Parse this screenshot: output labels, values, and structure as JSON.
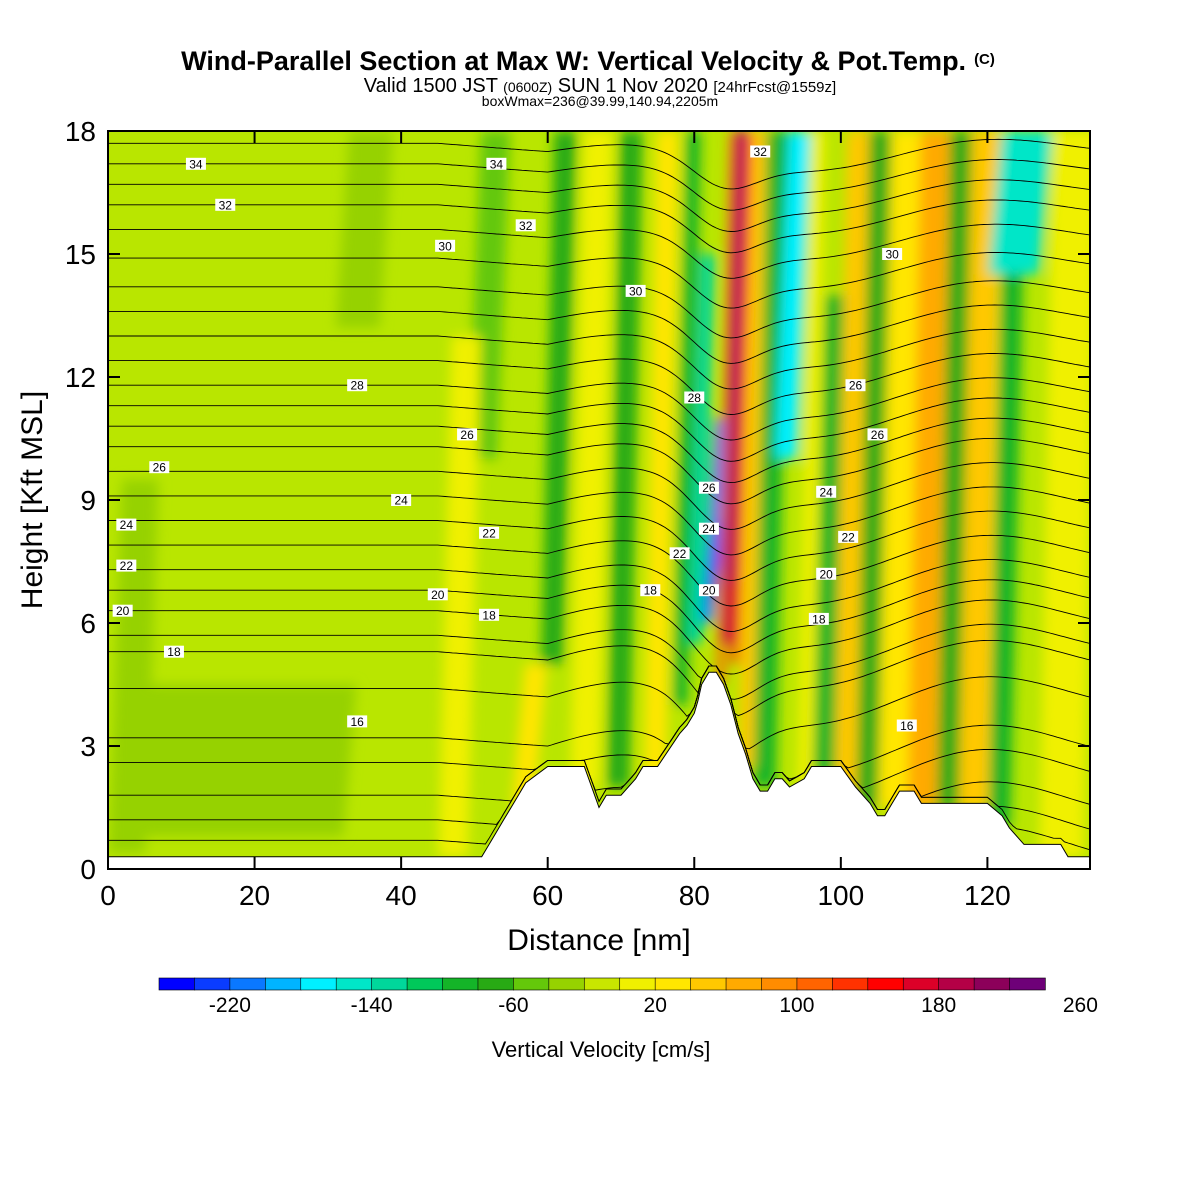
{
  "chart_data": {
    "type": "heatmap",
    "title": {
      "main": "Wind-Parallel Section at Max W: Vertical Velocity & Pot.Temp.",
      "main_suffix": "(C)",
      "valid_a": "Valid 1500 JST",
      "valid_b": "(0600Z)",
      "valid_c": "SUN 1 Nov 2020",
      "valid_d": "[24hrFcst@1559z]",
      "subtitle": "boxWmax=236@39.99,140.94,2205m"
    },
    "xlabel": "Distance [nm]",
    "ylabel": "Height [Kft MSL]",
    "xlim": [
      0,
      134
    ],
    "ylim": [
      0,
      18
    ],
    "x_ticks": [
      0,
      20,
      40,
      60,
      80,
      100,
      120
    ],
    "y_ticks": [
      0,
      3,
      6,
      9,
      12,
      15,
      18
    ],
    "colorbar": {
      "label": "Vertical Velocity [cm/s]",
      "min": -260,
      "step": 20,
      "colors": [
        "#0000ff",
        "#0a3cff",
        "#0a78ff",
        "#00b4ff",
        "#00f0ff",
        "#00e6c8",
        "#00d79b",
        "#00c85a",
        "#14b428",
        "#28aa14",
        "#64c80a",
        "#96d200",
        "#c8e600",
        "#f0f000",
        "#ffe600",
        "#ffc800",
        "#ffaa00",
        "#ff8c00",
        "#ff6400",
        "#ff3200",
        "#ff0000",
        "#dc0028",
        "#b40046",
        "#8c005a",
        "#6e0078"
      ],
      "labels": [
        {
          "value": -220,
          "text": "-220"
        },
        {
          "value": -140,
          "text": "-140"
        },
        {
          "value": -60,
          "text": "-60"
        },
        {
          "value": 20,
          "text": "20"
        },
        {
          "value": 100,
          "text": "100"
        },
        {
          "value": 180,
          "text": "180"
        },
        {
          "value": 260,
          "text": "260"
        }
      ]
    },
    "background_color": "#b9e600",
    "velocity_bands": [
      {
        "x": 1,
        "w": 5,
        "y0": 0.4,
        "y1": 9.5,
        "color": "#96d200"
      },
      {
        "x": 5,
        "w": 28,
        "y0": 0.8,
        "y1": 4.5,
        "color": "#96d200"
      },
      {
        "x": 32,
        "w": 6,
        "y0": 13.2,
        "y1": 18,
        "color": "#96d200"
      },
      {
        "x": 50,
        "w": 4,
        "y0": 10,
        "y1": 18,
        "color": "#64c80a"
      },
      {
        "x": 46,
        "w": 4,
        "y0": 0.3,
        "y1": 13,
        "color": "#f0f000"
      },
      {
        "x": 56,
        "w": 3,
        "y0": 1.5,
        "y1": 5,
        "color": "#ffe600"
      },
      {
        "x": 60,
        "w": 3,
        "y0": 5,
        "y1": 18,
        "color": "#28aa14"
      },
      {
        "x": 64,
        "w": 4,
        "y0": 2,
        "y1": 18,
        "color": "#f0f000"
      },
      {
        "x": 69,
        "w": 3,
        "y0": 2,
        "y1": 18,
        "color": "#28aa14"
      },
      {
        "x": 74,
        "w": 3,
        "y0": 2,
        "y1": 18,
        "color": "#ffe600"
      },
      {
        "x": 78,
        "w": 2,
        "y0": 4,
        "y1": 18,
        "color": "#14b428"
      },
      {
        "x": 80,
        "w": 2,
        "y0": 5.5,
        "y1": 15,
        "color": "#00d79b"
      },
      {
        "x": 82,
        "w": 1.5,
        "y0": 6,
        "y1": 11,
        "color": "#0a78ff"
      },
      {
        "x": 82.5,
        "w": 1,
        "y0": 6.5,
        "y1": 8.5,
        "color": "#0a3cff"
      },
      {
        "x": 84,
        "w": 1,
        "y0": 4.5,
        "y1": 18,
        "color": "#ff6400"
      },
      {
        "x": 84.8,
        "w": 1.2,
        "y0": 5.5,
        "y1": 18,
        "color": "#b40046"
      },
      {
        "x": 85.4,
        "w": 0.7,
        "y0": 7,
        "y1": 18,
        "color": "#6e0078"
      },
      {
        "x": 86,
        "w": 1,
        "y0": 5,
        "y1": 18,
        "color": "#ff0000"
      },
      {
        "x": 87,
        "w": 2,
        "y0": 2.5,
        "y1": 18,
        "color": "#ffc800"
      },
      {
        "x": 89,
        "w": 3,
        "y0": 2,
        "y1": 18,
        "color": "#14b428"
      },
      {
        "x": 92,
        "w": 3,
        "y0": 10,
        "y1": 18,
        "color": "#00f0ff"
      },
      {
        "x": 95,
        "w": 2,
        "y0": 2,
        "y1": 18,
        "color": "#f0f000"
      },
      {
        "x": 97,
        "w": 3,
        "y0": 1.5,
        "y1": 14,
        "color": "#14b428"
      },
      {
        "x": 100,
        "w": 3,
        "y0": 1.5,
        "y1": 18,
        "color": "#ffc800"
      },
      {
        "x": 103,
        "w": 3,
        "y0": 1.5,
        "y1": 18,
        "color": "#28aa14"
      },
      {
        "x": 106,
        "w": 4,
        "y0": 1.5,
        "y1": 18,
        "color": "#ffe600"
      },
      {
        "x": 110,
        "w": 4,
        "y0": 1.5,
        "y1": 18,
        "color": "#ffaa00"
      },
      {
        "x": 114,
        "w": 3,
        "y0": 1.5,
        "y1": 18,
        "color": "#28aa14"
      },
      {
        "x": 117,
        "w": 4,
        "y0": 1.5,
        "y1": 18,
        "color": "#ffc800"
      },
      {
        "x": 121,
        "w": 3,
        "y0": 1,
        "y1": 15,
        "color": "#14b428"
      },
      {
        "x": 121,
        "w": 7,
        "y0": 14.5,
        "y1": 18,
        "color": "#00e6c8"
      },
      {
        "x": 128,
        "w": 6,
        "y0": 0.3,
        "y1": 18,
        "color": "#f0f000"
      }
    ],
    "terrain": [
      [
        0,
        0.3
      ],
      [
        51,
        0.3
      ],
      [
        52,
        0.6
      ],
      [
        53,
        0.9
      ],
      [
        54,
        1.2
      ],
      [
        55,
        1.5
      ],
      [
        56,
        1.8
      ],
      [
        57,
        2.1
      ],
      [
        60,
        2.5
      ],
      [
        65,
        2.5
      ],
      [
        67,
        1.5
      ],
      [
        68,
        1.8
      ],
      [
        70,
        1.8
      ],
      [
        72,
        2.2
      ],
      [
        73,
        2.5
      ],
      [
        75,
        2.5
      ],
      [
        78,
        3.3
      ],
      [
        79,
        3.5
      ],
      [
        80,
        3.8
      ],
      [
        80.5,
        4.1
      ],
      [
        81,
        4.5
      ],
      [
        82,
        4.8
      ],
      [
        83,
        4.8
      ],
      [
        84,
        4.5
      ],
      [
        85,
        4
      ],
      [
        86,
        3.3
      ],
      [
        87,
        2.8
      ],
      [
        88,
        2.2
      ],
      [
        89,
        1.9
      ],
      [
        90,
        1.9
      ],
      [
        91,
        2.2
      ],
      [
        92,
        2.2
      ],
      [
        93,
        2
      ],
      [
        95,
        2.2
      ],
      [
        96,
        2.5
      ],
      [
        100,
        2.5
      ],
      [
        102,
        2
      ],
      [
        104,
        1.6
      ],
      [
        105,
        1.3
      ],
      [
        106,
        1.3
      ],
      [
        107,
        1.6
      ],
      [
        108,
        1.9
      ],
      [
        110,
        1.9
      ],
      [
        111,
        1.6
      ],
      [
        120,
        1.6
      ],
      [
        122,
        1.3
      ],
      [
        123,
        1.0
      ],
      [
        125,
        0.6
      ],
      [
        130,
        0.6
      ],
      [
        131,
        0.3
      ],
      [
        134,
        0.3
      ]
    ],
    "theta_levels": [
      {
        "base": 0.7,
        "label": null
      },
      {
        "base": 1.2,
        "label": null
      },
      {
        "base": 1.8,
        "label": null
      },
      {
        "base": 2.6,
        "label": null
      },
      {
        "base": 3.2,
        "label": "16"
      },
      {
        "base": 4.4,
        "label": null
      },
      {
        "base": 5.3,
        "label": "18"
      },
      {
        "base": 5.7,
        "label": null
      },
      {
        "base": 6.3,
        "label": "20"
      },
      {
        "base": 6.8,
        "label": null
      },
      {
        "base": 7.3,
        "label": "22"
      },
      {
        "base": 7.9,
        "label": null
      },
      {
        "base": 8.5,
        "label": "24"
      },
      {
        "base": 9.1,
        "label": null
      },
      {
        "base": 9.7,
        "label": "26"
      },
      {
        "base": 10.3,
        "label": null
      },
      {
        "base": 10.8,
        "label": null
      },
      {
        "base": 11.3,
        "label": null
      },
      {
        "base": 11.8,
        "label": "28"
      },
      {
        "base": 12.4,
        "label": null
      },
      {
        "base": 13.0,
        "label": null
      },
      {
        "base": 13.6,
        "label": null
      },
      {
        "base": 14.2,
        "label": null
      },
      {
        "base": 14.9,
        "label": "30"
      },
      {
        "base": 15.6,
        "label": null
      },
      {
        "base": 16.2,
        "label": "32"
      },
      {
        "base": 16.7,
        "label": null
      },
      {
        "base": 17.2,
        "label": "34"
      },
      {
        "base": 17.7,
        "label": null
      }
    ],
    "contour_labels": [
      {
        "x": 12,
        "y": 17.2,
        "text": "34"
      },
      {
        "x": 16,
        "y": 16.2,
        "text": "32"
      },
      {
        "x": 46,
        "y": 15.2,
        "text": "30"
      },
      {
        "x": 34,
        "y": 11.8,
        "text": "28"
      },
      {
        "x": 7,
        "y": 9.8,
        "text": "26"
      },
      {
        "x": 2.5,
        "y": 8.4,
        "text": "24"
      },
      {
        "x": 2.5,
        "y": 7.4,
        "text": "22"
      },
      {
        "x": 2,
        "y": 6.3,
        "text": "20"
      },
      {
        "x": 9,
        "y": 5.3,
        "text": "18"
      },
      {
        "x": 34,
        "y": 3.6,
        "text": "16"
      },
      {
        "x": 53,
        "y": 17.2,
        "text": "34"
      },
      {
        "x": 57,
        "y": 15.7,
        "text": "32"
      },
      {
        "x": 72,
        "y": 14.1,
        "text": "30"
      },
      {
        "x": 80,
        "y": 11.5,
        "text": "28"
      },
      {
        "x": 49,
        "y": 10.6,
        "text": "26"
      },
      {
        "x": 40,
        "y": 9.0,
        "text": "24"
      },
      {
        "x": 52,
        "y": 8.2,
        "text": "22"
      },
      {
        "x": 45,
        "y": 6.7,
        "text": "20"
      },
      {
        "x": 52,
        "y": 6.2,
        "text": "18"
      },
      {
        "x": 74,
        "y": 6.8,
        "text": "18"
      },
      {
        "x": 78,
        "y": 7.7,
        "text": "22"
      },
      {
        "x": 82,
        "y": 9.3,
        "text": "26"
      },
      {
        "x": 82,
        "y": 8.3,
        "text": "24"
      },
      {
        "x": 82,
        "y": 6.8,
        "text": "20"
      },
      {
        "x": 89,
        "y": 17.5,
        "text": "32"
      },
      {
        "x": 107,
        "y": 15.0,
        "text": "30"
      },
      {
        "x": 102,
        "y": 11.8,
        "text": "26"
      },
      {
        "x": 105,
        "y": 10.6,
        "text": "26"
      },
      {
        "x": 98,
        "y": 9.2,
        "text": "24"
      },
      {
        "x": 101,
        "y": 8.1,
        "text": "22"
      },
      {
        "x": 98,
        "y": 7.2,
        "text": "20"
      },
      {
        "x": 97,
        "y": 6.1,
        "text": "18"
      },
      {
        "x": 109,
        "y": 3.5,
        "text": "16"
      }
    ]
  }
}
